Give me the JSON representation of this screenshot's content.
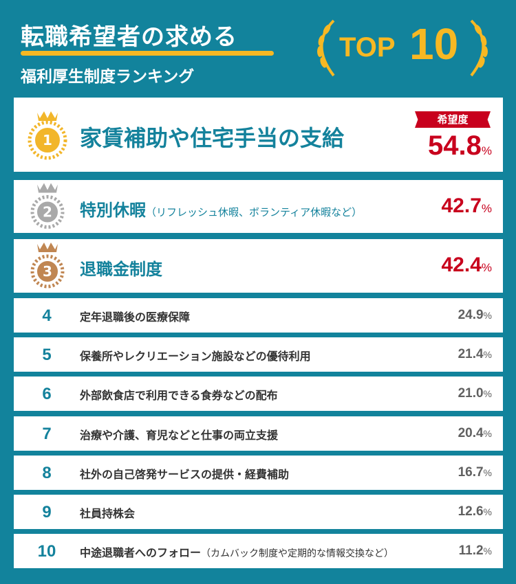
{
  "header": {
    "title": "転職希望者の求める",
    "subtitle": "福利厚生制度ランキング",
    "top_label": "TOP",
    "top_number": "10"
  },
  "badge": "希望度",
  "unit": "%",
  "colors": {
    "background": "#12839c",
    "accent": "#f7b823",
    "red": "#c8001d",
    "teal": "#14829c"
  },
  "ranking": [
    {
      "rank": "1",
      "name": "家賃補助や住宅手当の支給",
      "note": "",
      "value": "54.8"
    },
    {
      "rank": "2",
      "name": "特別休暇",
      "note": "（リフレッシュ休暇、ボランティア休暇など）",
      "value": "42.7"
    },
    {
      "rank": "3",
      "name": "退職金制度",
      "note": "",
      "value": "42.4"
    },
    {
      "rank": "4",
      "name": "定年退職後の医療保障",
      "note": "",
      "value": "24.9"
    },
    {
      "rank": "5",
      "name": "保養所やレクリエーション施設などの優待利用",
      "note": "",
      "value": "21.4"
    },
    {
      "rank": "6",
      "name": "外部飲食店で利用できる食券などの配布",
      "note": "",
      "value": "21.0"
    },
    {
      "rank": "7",
      "name": "治療や介護、育児などと仕事の両立支援",
      "note": "",
      "value": "20.4"
    },
    {
      "rank": "8",
      "name": "社外の自己啓発サービスの提供・経費補助",
      "note": "",
      "value": "16.7"
    },
    {
      "rank": "9",
      "name": "社員持株会",
      "note": "",
      "value": "12.6"
    },
    {
      "rank": "10",
      "name": "中途退職者へのフォロー",
      "note": "（カムバック制度や定期的な情報交換など）",
      "value": "11.2"
    }
  ]
}
